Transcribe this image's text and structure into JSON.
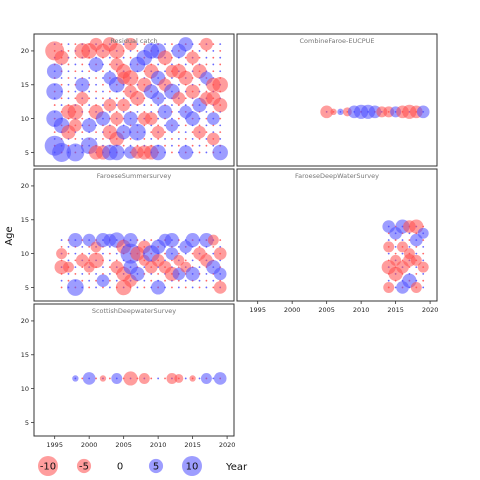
{
  "chart_data": {
    "type": "scatter",
    "ylabel": "Age",
    "xlabel": "Year",
    "xlim": [
      1992,
      2021
    ],
    "ylim": [
      3,
      22.5
    ],
    "x_ticks": [
      1995,
      2000,
      2005,
      2010,
      2015,
      2020
    ],
    "y_ticks": [
      5,
      10,
      15,
      20
    ],
    "colors": {
      "negative": "#ff4d4d",
      "positive": "#4d4dff"
    },
    "legend": {
      "title": "",
      "items": [
        {
          "label": "-10",
          "value": -10
        },
        {
          "label": "-5",
          "value": -5
        },
        {
          "label": "0",
          "value": 0
        },
        {
          "label": "5",
          "value": 5
        },
        {
          "label": "10",
          "value": 10
        }
      ]
    },
    "panels": [
      {
        "title": "Residual catch",
        "grid": {
          "years": [
            1995,
            2019
          ],
          "ages": [
            5,
            21
          ]
        },
        "points": [
          [
            1995,
            20,
            -9
          ],
          [
            1995,
            17,
            6
          ],
          [
            1995,
            14,
            7
          ],
          [
            1995,
            10,
            7
          ],
          [
            1995,
            6,
            10
          ],
          [
            1996,
            19,
            -5
          ],
          [
            1996,
            9,
            6
          ],
          [
            1996,
            5,
            9
          ],
          [
            1997,
            11,
            -5
          ],
          [
            1997,
            8,
            -5
          ],
          [
            1998,
            11,
            -6
          ],
          [
            1998,
            9,
            -4
          ],
          [
            1998,
            5,
            8
          ],
          [
            1999,
            20,
            -6
          ],
          [
            1999,
            15,
            5
          ],
          [
            1999,
            13,
            -4
          ],
          [
            2000,
            20,
            -6
          ],
          [
            2000,
            9,
            5
          ],
          [
            2000,
            6,
            7
          ],
          [
            2001,
            21,
            -4
          ],
          [
            2001,
            18,
            5
          ],
          [
            2001,
            11,
            -5
          ],
          [
            2001,
            5,
            -5
          ],
          [
            2002,
            20,
            -5
          ],
          [
            2002,
            10,
            5
          ],
          [
            2002,
            5,
            -5
          ],
          [
            2003,
            21,
            -5
          ],
          [
            2003,
            16,
            4
          ],
          [
            2003,
            12,
            -4
          ],
          [
            2003,
            8,
            -5
          ],
          [
            2003,
            5,
            6
          ],
          [
            2004,
            20,
            -6
          ],
          [
            2004,
            18,
            -4
          ],
          [
            2004,
            15,
            6
          ],
          [
            2004,
            10,
            -4
          ],
          [
            2004,
            7,
            -5
          ],
          [
            2004,
            5,
            6
          ],
          [
            2005,
            17,
            -5
          ],
          [
            2005,
            16,
            -4
          ],
          [
            2005,
            12,
            -4
          ],
          [
            2005,
            8,
            5
          ],
          [
            2006,
            21,
            -4
          ],
          [
            2006,
            16,
            -6
          ],
          [
            2006,
            14,
            -4
          ],
          [
            2006,
            10,
            5
          ],
          [
            2006,
            5,
            4
          ],
          [
            2007,
            18,
            6
          ],
          [
            2007,
            13,
            -5
          ],
          [
            2007,
            8,
            7
          ],
          [
            2007,
            5,
            -4
          ],
          [
            2008,
            19,
            6
          ],
          [
            2008,
            15,
            -5
          ],
          [
            2008,
            10,
            -4
          ],
          [
            2008,
            5,
            -5
          ],
          [
            2009,
            20,
            6
          ],
          [
            2009,
            17,
            -5
          ],
          [
            2009,
            14,
            5
          ],
          [
            2009,
            10,
            -4
          ],
          [
            2009,
            5,
            -5
          ],
          [
            2010,
            20,
            6
          ],
          [
            2010,
            16,
            5
          ],
          [
            2010,
            13,
            4
          ],
          [
            2010,
            8,
            -4
          ],
          [
            2010,
            5,
            6
          ],
          [
            2011,
            19,
            -5
          ],
          [
            2011,
            15,
            -4
          ],
          [
            2011,
            11,
            5
          ],
          [
            2012,
            17,
            -4
          ],
          [
            2012,
            14,
            6
          ],
          [
            2012,
            9,
            4
          ],
          [
            2013,
            20,
            5
          ],
          [
            2013,
            17,
            -5
          ],
          [
            2013,
            13,
            -4
          ],
          [
            2014,
            21,
            5
          ],
          [
            2014,
            16,
            -5
          ],
          [
            2014,
            11,
            4
          ],
          [
            2014,
            5,
            5
          ],
          [
            2015,
            19,
            -4
          ],
          [
            2015,
            14,
            -5
          ],
          [
            2015,
            10,
            5
          ],
          [
            2016,
            17,
            -5
          ],
          [
            2016,
            12,
            5
          ],
          [
            2016,
            8,
            -4
          ],
          [
            2017,
            21,
            -4
          ],
          [
            2017,
            16,
            4
          ],
          [
            2017,
            13,
            -4
          ],
          [
            2018,
            15,
            -5
          ],
          [
            2018,
            13,
            -5
          ],
          [
            2018,
            10,
            4
          ],
          [
            2018,
            7,
            -4
          ],
          [
            2019,
            15,
            -6
          ],
          [
            2019,
            12,
            -5
          ],
          [
            2019,
            5,
            6
          ]
        ]
      },
      {
        "title": "CombineFaroe-EUCPUE",
        "grid": {
          "years": [
            2005,
            2019
          ],
          "ages": [
            11,
            11
          ]
        },
        "points": [
          [
            2005,
            11,
            -4
          ],
          [
            2006,
            11,
            -1
          ],
          [
            2007,
            11,
            1
          ],
          [
            2008,
            11,
            -2
          ],
          [
            2009,
            11,
            4
          ],
          [
            2010,
            11,
            5
          ],
          [
            2011,
            11,
            5
          ],
          [
            2012,
            11,
            4
          ],
          [
            2013,
            11,
            -3
          ],
          [
            2014,
            11,
            -3
          ],
          [
            2015,
            11,
            3
          ],
          [
            2016,
            11,
            -4
          ],
          [
            2017,
            11,
            -5
          ],
          [
            2018,
            11,
            -4
          ],
          [
            2019,
            11,
            4
          ]
        ]
      },
      {
        "title": "FaroeseSummersurvey",
        "grid": {
          "years": [
            1996,
            2019
          ],
          "ages": [
            5,
            12
          ]
        },
        "points": [
          [
            1996,
            10,
            -3
          ],
          [
            1996,
            8,
            -5
          ],
          [
            1997,
            8,
            -3
          ],
          [
            1998,
            12,
            5
          ],
          [
            1998,
            5,
            7
          ],
          [
            1999,
            9,
            -4
          ],
          [
            2000,
            12,
            4
          ],
          [
            2000,
            8,
            -3
          ],
          [
            2001,
            9,
            -6
          ],
          [
            2001,
            11,
            -3
          ],
          [
            2002,
            12,
            5
          ],
          [
            2002,
            6,
            4
          ],
          [
            2003,
            12,
            4
          ],
          [
            2004,
            12,
            6
          ],
          [
            2004,
            8,
            -4
          ],
          [
            2005,
            11,
            -5
          ],
          [
            2005,
            7,
            -5
          ],
          [
            2005,
            5,
            -6
          ],
          [
            2006,
            12,
            5
          ],
          [
            2006,
            10,
            10
          ],
          [
            2006,
            8,
            5
          ],
          [
            2006,
            6,
            -4
          ],
          [
            2007,
            10,
            -5
          ],
          [
            2007,
            7,
            5
          ],
          [
            2008,
            11,
            -4
          ],
          [
            2008,
            9,
            -3
          ],
          [
            2009,
            10,
            7
          ],
          [
            2009,
            8,
            -4
          ],
          [
            2010,
            11,
            5
          ],
          [
            2010,
            9,
            -4
          ],
          [
            2010,
            5,
            5
          ],
          [
            2011,
            12,
            4
          ],
          [
            2011,
            8,
            -4
          ],
          [
            2012,
            12,
            5
          ],
          [
            2012,
            10,
            4
          ],
          [
            2012,
            7,
            -5
          ],
          [
            2013,
            9,
            -3
          ],
          [
            2013,
            7,
            4
          ],
          [
            2014,
            11,
            4
          ],
          [
            2014,
            8,
            -3
          ],
          [
            2015,
            12,
            5
          ],
          [
            2015,
            7,
            5
          ],
          [
            2016,
            10,
            -4
          ],
          [
            2017,
            12,
            5
          ],
          [
            2017,
            9,
            -4
          ],
          [
            2018,
            12,
            -3
          ],
          [
            2018,
            8,
            5
          ],
          [
            2019,
            10,
            -4
          ],
          [
            2019,
            7,
            4
          ],
          [
            2019,
            5,
            -4
          ]
        ]
      },
      {
        "title": "FaroeseDeepWaterSurvey",
        "grid": {
          "years": [
            2014,
            2019
          ],
          "ages": [
            5,
            14
          ]
        },
        "points": [
          [
            2014,
            14,
            4
          ],
          [
            2014,
            11,
            -3
          ],
          [
            2014,
            8,
            -5
          ],
          [
            2014,
            5,
            -3
          ],
          [
            2015,
            13,
            4
          ],
          [
            2015,
            9,
            -3
          ],
          [
            2015,
            7,
            -5
          ],
          [
            2016,
            14,
            5
          ],
          [
            2016,
            11,
            -3
          ],
          [
            2016,
            8,
            -4
          ],
          [
            2016,
            5,
            4
          ],
          [
            2017,
            14,
            -4
          ],
          [
            2017,
            10,
            -3
          ],
          [
            2017,
            9,
            -4
          ],
          [
            2017,
            6,
            5
          ],
          [
            2018,
            14,
            -5
          ],
          [
            2018,
            12,
            4
          ],
          [
            2018,
            9,
            -3
          ],
          [
            2018,
            5,
            -3
          ],
          [
            2019,
            13,
            3
          ],
          [
            2019,
            8,
            -3
          ]
        ]
      },
      {
        "title": "ScottishDeepwaterSurvey",
        "grid": {
          "years": [
            1998,
            2019
          ],
          "ages": [
            11.5,
            11.5
          ]
        },
        "points": [
          [
            1998,
            11.5,
            1
          ],
          [
            2000,
            11.5,
            4
          ],
          [
            2002,
            11.5,
            -1
          ],
          [
            2004,
            11.5,
            3
          ],
          [
            2006,
            11.5,
            -5
          ],
          [
            2008,
            11.5,
            -3
          ],
          [
            2012,
            11.5,
            -3
          ],
          [
            2013,
            11.5,
            -2
          ],
          [
            2015,
            11.5,
            -1
          ],
          [
            2017,
            11.5,
            3
          ],
          [
            2019,
            11.5,
            4
          ]
        ]
      }
    ]
  }
}
